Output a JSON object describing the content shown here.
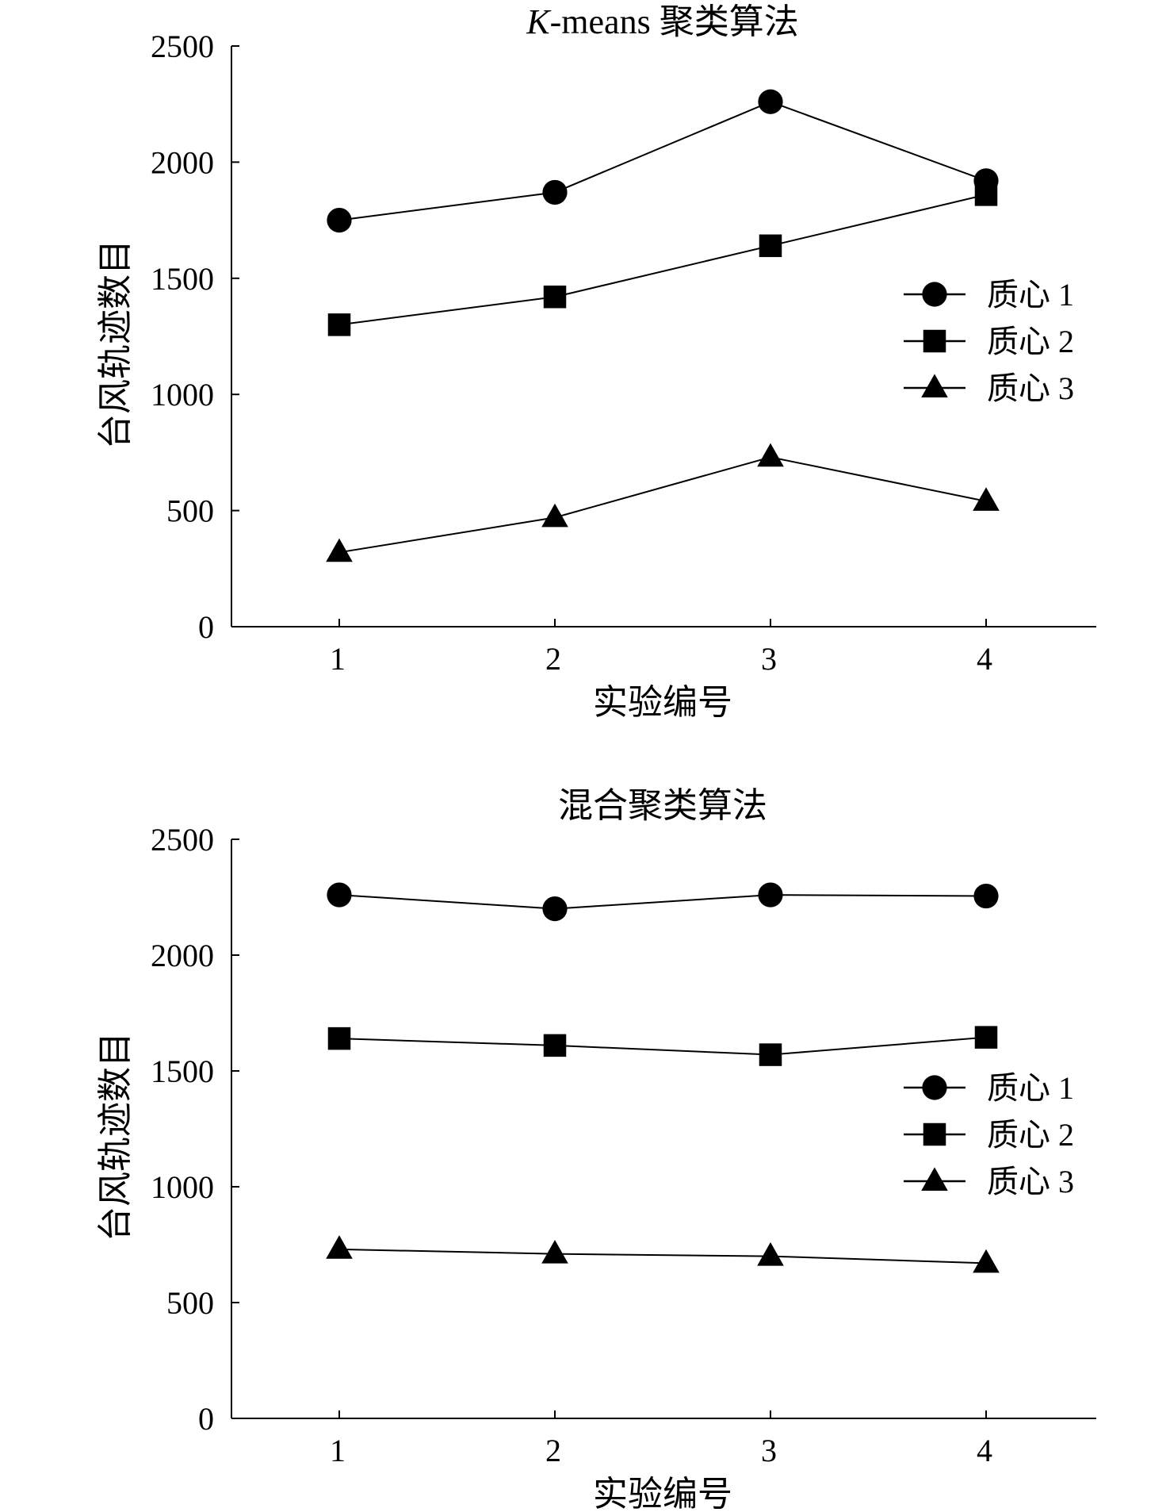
{
  "chart_data": [
    {
      "type": "line",
      "title_italic": "K",
      "title_rest": "-means 聚类算法",
      "xlabel": "实验编号",
      "ylabel": "台风轨迹数目",
      "categories": [
        "1",
        "2",
        "3",
        "4"
      ],
      "x": [
        1,
        2,
        3,
        4
      ],
      "xlim": [
        0.5,
        4.5
      ],
      "ylim": [
        0,
        2500
      ],
      "yticks": [
        "0",
        "500",
        "1000",
        "1500",
        "2000",
        "2500"
      ],
      "grid": false,
      "legend_position": "right",
      "series": [
        {
          "name": "质心 1",
          "marker": "circle",
          "values": [
            1750,
            1870,
            2260,
            1920
          ]
        },
        {
          "name": "质心 2",
          "marker": "square",
          "values": [
            1300,
            1420,
            1640,
            1860
          ]
        },
        {
          "name": "质心 3",
          "marker": "triangle",
          "values": [
            320,
            470,
            730,
            540
          ]
        }
      ]
    },
    {
      "type": "line",
      "title_italic": "",
      "title_rest": "混合聚类算法",
      "xlabel": "实验编号",
      "ylabel": "台风轨迹数目",
      "categories": [
        "1",
        "2",
        "3",
        "4"
      ],
      "x": [
        1,
        2,
        3,
        4
      ],
      "xlim": [
        0.5,
        4.5
      ],
      "ylim": [
        0,
        2500
      ],
      "yticks": [
        "0",
        "500",
        "1000",
        "1500",
        "2000",
        "2500"
      ],
      "grid": false,
      "legend_position": "right",
      "series": [
        {
          "name": "质心 1",
          "marker": "circle",
          "values": [
            2260,
            2200,
            2260,
            2255
          ]
        },
        {
          "name": "质心 2",
          "marker": "square",
          "values": [
            1640,
            1610,
            1570,
            1645
          ]
        },
        {
          "name": "质心 3",
          "marker": "triangle",
          "values": [
            730,
            710,
            700,
            670
          ]
        }
      ]
    }
  ]
}
